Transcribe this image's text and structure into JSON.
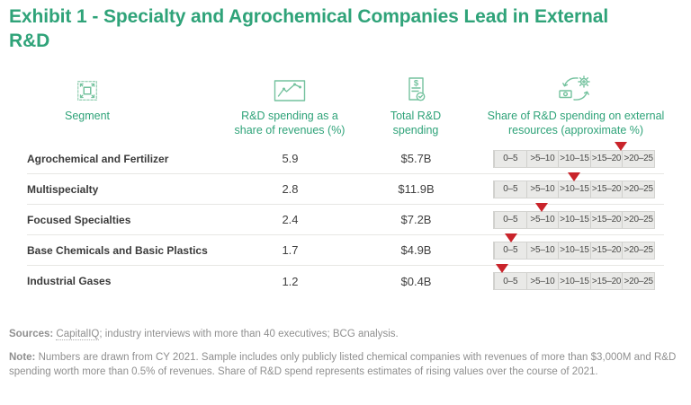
{
  "title_line1": "Exhibit 1 - Specialty and Agrochemical Companies Lead in External",
  "title_line2": "R&D",
  "colors": {
    "green": "#2FA379",
    "icon_green": "#74C29E",
    "marker_red": "#C9242B",
    "scale_bg": "#e9e9e7",
    "text_dark": "#3B3B3B",
    "footer_gray": "#8F8F8F"
  },
  "table": {
    "columns": [
      {
        "label": "Segment",
        "icon": "segment-icon"
      },
      {
        "label": "R&D spending as a share of revenues (%)",
        "icon": "line-chart-icon"
      },
      {
        "label": "Total R&D spending",
        "icon": "invoice-icon"
      },
      {
        "label": "Share of R&D spending on external resources (approximate %)",
        "icon": "money-cycle-icon"
      }
    ],
    "scale_labels": [
      "0–5",
      ">5–10",
      ">10–15",
      ">15–20",
      ">20–25"
    ],
    "rows": [
      {
        "segment": "Agrochemical and Fertilizer",
        "rd_share_pct": "5.9",
        "total_rd": "$5.7B",
        "marker_pct": 79
      },
      {
        "segment": "Multispecialty",
        "rd_share_pct": "2.8",
        "total_rd": "$11.9B",
        "marker_pct": 50
      },
      {
        "segment": "Focused Specialties",
        "rd_share_pct": "2.4",
        "total_rd": "$7.2B",
        "marker_pct": 30
      },
      {
        "segment": "Base Chemicals and Basic Plastics",
        "rd_share_pct": "1.7",
        "total_rd": "$4.9B",
        "marker_pct": 10.5
      },
      {
        "segment": "Industrial Gases",
        "rd_share_pct": "1.2",
        "total_rd": "$0.4B",
        "marker_pct": 5
      }
    ]
  },
  "footer": {
    "sources_label": "Sources:",
    "sources_capitaliq": "CapitalIQ",
    "sources_rest": "; industry interviews with more than 40 executives; BCG analysis.",
    "note_label": "Note:",
    "note_text": "Numbers are drawn from CY 2021. Sample includes only publicly listed chemical companies with revenues of more than $3,000M and R&D spending worth more than 0.5% of revenues. Share of R&D spend represents estimates of rising values over the course of 2021."
  },
  "chart_data": {
    "type": "table",
    "title": "Exhibit 1 - Specialty and Agrochemical Companies Lead in External R&D",
    "columns": [
      "Segment",
      "R&D spending as a share of revenues (%)",
      "Total R&D spending",
      "Share of R&D spending on external resources (approximate %)"
    ],
    "scale_bins": [
      "0–5",
      ">5–10",
      ">10–15",
      ">15–20",
      ">20–25"
    ],
    "scale_range": [
      0,
      25
    ],
    "rows": [
      {
        "segment": "Agrochemical and Fertilizer",
        "rd_share_of_revenues_pct": 5.9,
        "total_rd_spending": "$5.7B",
        "external_share_approx_pct": 20
      },
      {
        "segment": "Multispecialty",
        "rd_share_of_revenues_pct": 2.8,
        "total_rd_spending": "$11.9B",
        "external_share_approx_pct": 12.5
      },
      {
        "segment": "Focused Specialties",
        "rd_share_of_revenues_pct": 2.4,
        "total_rd_spending": "$7.2B",
        "external_share_approx_pct": 7.5
      },
      {
        "segment": "Base Chemicals and Basic Plastics",
        "rd_share_of_revenues_pct": 1.7,
        "total_rd_spending": "$4.9B",
        "external_share_approx_pct": 2.5
      },
      {
        "segment": "Industrial Gases",
        "rd_share_of_revenues_pct": 1.2,
        "total_rd_spending": "$0.4B",
        "external_share_approx_pct": 1.25
      }
    ]
  }
}
